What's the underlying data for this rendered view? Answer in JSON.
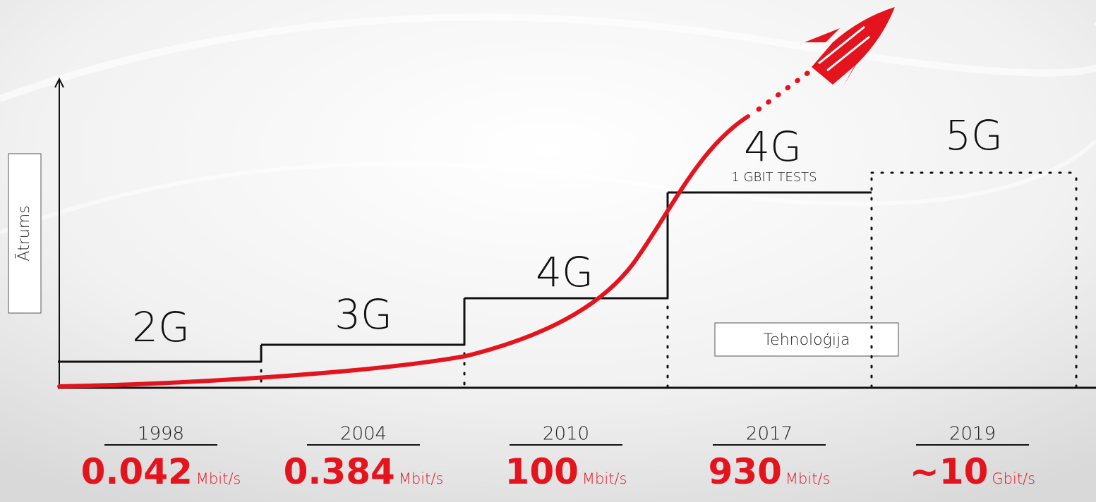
{
  "axis_labels": {
    "y": "Ātrums",
    "x": "Tehnoloģija"
  },
  "stages": [
    {
      "generation": "2G",
      "year": "1998",
      "speed": "0.042",
      "unit": "Mbit/s"
    },
    {
      "generation": "3G",
      "year": "2004",
      "speed": "0.384",
      "unit": "Mbit/s"
    },
    {
      "generation": "4G",
      "year": "2010",
      "speed": "100",
      "unit": "Mbit/s"
    },
    {
      "generation": "4G",
      "note": "1 GBIT TESTS",
      "year": "2017",
      "speed": "930",
      "unit": "Mbit/s"
    },
    {
      "generation": "5G",
      "year": "2019",
      "speed": "~10",
      "unit": "Gbit/s"
    }
  ]
}
